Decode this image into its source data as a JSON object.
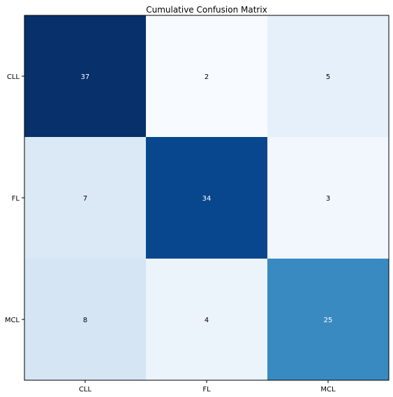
{
  "chart_data": {
    "type": "heatmap",
    "title": "Cumulative Confusion Matrix",
    "xlabel": "",
    "ylabel": "",
    "x_categories": [
      "CLL",
      "FL",
      "MCL"
    ],
    "y_categories": [
      "CLL",
      "FL",
      "MCL"
    ],
    "values": [
      [
        37,
        2,
        5
      ],
      [
        7,
        34,
        3
      ],
      [
        8,
        4,
        25
      ]
    ],
    "colormap": "Blues",
    "grid": false,
    "legend": "none"
  }
}
